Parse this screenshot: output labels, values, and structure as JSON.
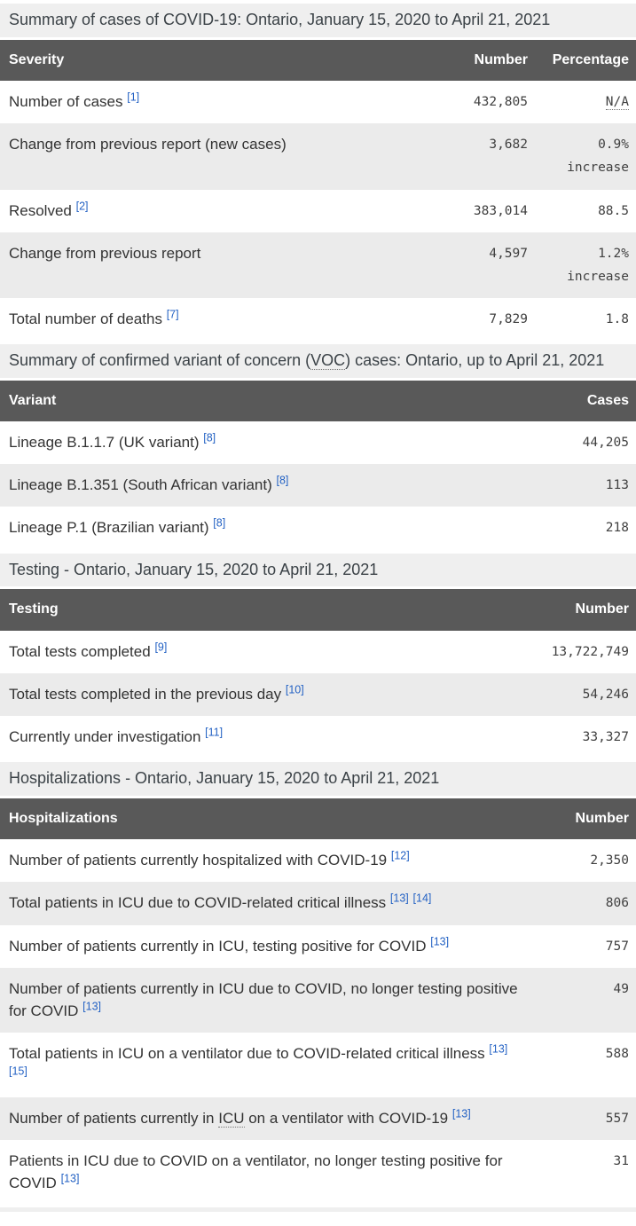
{
  "colors": {
    "table_header_bg": "#595959",
    "table_header_text": "#ffffff",
    "zebra_stripe_bg": "#ebebeb",
    "section_title_bg": "#efefef",
    "footnote_link": "#2462c4",
    "body_text": "#333333"
  },
  "sections": [
    {
      "title": "Summary of cases of COVID-19: Ontario, January 15, 2020 to April 21, 2021",
      "columns": [
        "Severity",
        "Number",
        "Percentage"
      ],
      "rows": [
        {
          "label": "Number of cases",
          "ref1": "[1]",
          "number": "432,805",
          "percentage": "N/A"
        },
        {
          "label": "Change from previous report (new cases)",
          "number": "3,682",
          "percentage": "0.9% increase"
        },
        {
          "label": "Resolved",
          "ref1": "[2]",
          "number": "383,014",
          "percentage": "88.5"
        },
        {
          "label": "Change from previous report",
          "number": "4,597",
          "percentage": "1.2% increase"
        },
        {
          "label": "Total number of deaths",
          "ref1": "[7]",
          "number": "7,829",
          "percentage": "1.8"
        }
      ]
    },
    {
      "title_pre": "Summary of confirmed variant of concern (",
      "title_abbr": "VOC",
      "title_post": ") cases: Ontario, up to April 21, 2021",
      "columns": [
        "Variant",
        "Cases"
      ],
      "rows": [
        {
          "label": "Lineage B.1.1.7 (UK variant)",
          "ref1": "[8]",
          "number": "44,205"
        },
        {
          "label": "Lineage B.1.351 (South African variant)",
          "ref1": "[8]",
          "number": "113"
        },
        {
          "label": "Lineage P.1 (Brazilian variant)",
          "ref1": "[8]",
          "number": "218"
        }
      ]
    },
    {
      "title": "Testing - Ontario, January 15, 2020 to April 21, 2021",
      "columns": [
        "Testing",
        "Number"
      ],
      "rows": [
        {
          "label": "Total tests completed",
          "ref1": "[9]",
          "number": "13,722,749"
        },
        {
          "label": "Total tests completed in the previous day",
          "ref1": "[10]",
          "number": "54,246"
        },
        {
          "label": "Currently under investigation",
          "ref1": "[11]",
          "number": "33,327"
        }
      ]
    },
    {
      "title": "Hospitalizations - Ontario, January 15, 2020 to April 21, 2021",
      "columns": [
        "Hospitalizations",
        "Number"
      ],
      "rows": [
        {
          "label": "Number of patients currently hospitalized with COVID-19",
          "ref1": "[12]",
          "number": "2,350"
        },
        {
          "label": "Total patients in ICU due to COVID-related critical illness",
          "ref1": "[13]",
          "ref2": "[14]",
          "number": "806"
        },
        {
          "label": "Number of patients currently in ICU, testing positive for COVID",
          "ref1": "[13]",
          "number": "757"
        },
        {
          "label": "Number of patients currently in ICU due to COVID, no longer testing positive for COVID",
          "ref1": "[13]",
          "number": "49"
        },
        {
          "label": "Total patients in ICU on a ventilator due to COVID-related critical illness",
          "ref1": "[13]",
          "ref2": "[15]",
          "number": "588"
        },
        {
          "label_pre": "Number of patients currently in ",
          "label_abbr": "ICU",
          "label_post": " on a ventilator with COVID-19",
          "ref1": "[13]",
          "number": "557"
        },
        {
          "label": "Patients in ICU due to COVID on a ventilator, no longer testing positive for COVID",
          "ref1": "[13]",
          "number": "31"
        }
      ]
    }
  ]
}
